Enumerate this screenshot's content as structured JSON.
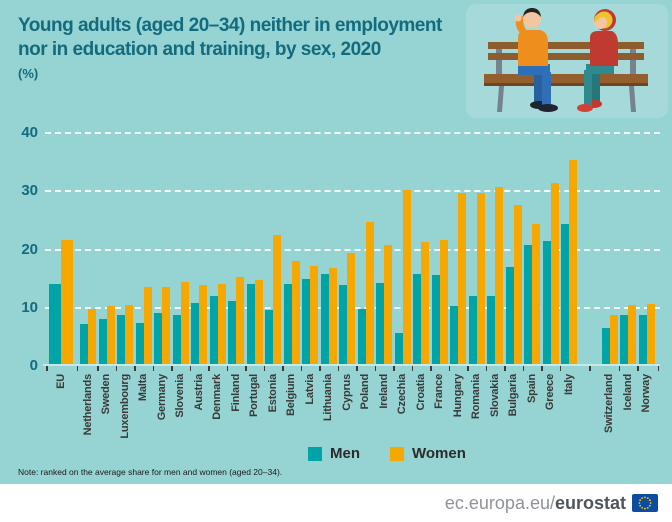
{
  "title": {
    "line1": "Young adults (aged 20–34) neither in employment",
    "line2": "nor in education and training, by sex, 2020",
    "unit": "(%)"
  },
  "note": "Note: ranked on the average share for men and women (aged 20–34).",
  "legend": [
    {
      "label": "Men",
      "color": "#00A3A6"
    },
    {
      "label": "Women",
      "color": "#F6A800"
    }
  ],
  "footer": {
    "url_prefix": "ec.europa.eu/",
    "url_bold": "eurostat",
    "flag_icon": "eu-flag-icon"
  },
  "illustration": "two-young-people-sitting-on-a-bench",
  "colors": {
    "background": "#96D3D3",
    "men_bar": "#00A3A6",
    "women_bar": "#F6A800",
    "title_text": "#136B7E",
    "axis_number_text": "#136B7E",
    "country_label_text": "#3A3A39",
    "gridline": "#FFFFFF",
    "footer_background": "#FFFFFF",
    "flag_blue": "#0E4CA1",
    "flag_stars": "#FFCC00"
  },
  "chart_data": {
    "type": "bar",
    "title": "Young adults (aged 20–34) neither in employment nor in education and training, by sex, 2020",
    "xlabel": "",
    "ylabel": "%",
    "ylim": [
      0,
      40
    ],
    "yticks": [
      0,
      10,
      20,
      30,
      40
    ],
    "grid": "horizontal white dashed",
    "legend_position": "bottom",
    "categories": [
      "EU",
      "Netherlands",
      "Sweden",
      "Luxembourg",
      "Malta",
      "Germany",
      "Slovenia",
      "Austria",
      "Denmark",
      "Finland",
      "Portugal",
      "Estonia",
      "Belgium",
      "Latvia",
      "Lithuania",
      "Cyprus",
      "Poland",
      "Ireland",
      "Czechia",
      "Croatia",
      "France",
      "Hungary",
      "Romania",
      "Slovakia",
      "Bulgaria",
      "Spain",
      "Greece",
      "Italy",
      "Switzerland",
      "Iceland",
      "Norway"
    ],
    "series": [
      {
        "name": "Men",
        "color": "#00A3A6",
        "values": [
          13.7,
          6.8,
          7.8,
          8.5,
          7.0,
          8.7,
          8.5,
          10.4,
          11.6,
          10.9,
          13.7,
          9.3,
          13.8,
          14.6,
          15.5,
          13.5,
          9.4,
          13.9,
          5.4,
          15.5,
          15.3,
          9.9,
          11.7,
          11.6,
          16.6,
          20.5,
          21.2,
          24.0,
          6.1,
          8.5,
          8.5
        ]
      },
      {
        "name": "Women",
        "color": "#F6A800",
        "values": [
          21.3,
          9.5,
          9.9,
          10.1,
          13.3,
          13.3,
          14.0,
          13.5,
          13.8,
          15.0,
          14.4,
          22.2,
          17.7,
          16.9,
          16.4,
          19.1,
          24.3,
          20.4,
          29.9,
          20.9,
          21.3,
          29.3,
          29.4,
          30.4,
          27.3,
          24.0,
          31.0,
          35.0,
          8.4,
          10.1,
          10.3
        ]
      }
    ],
    "layout_hints": {
      "eu_aggregate_first": true,
      "gap_before": "Switzerland",
      "ranking_note": "ranked on the average share for men and women (aged 20–34)"
    }
  }
}
